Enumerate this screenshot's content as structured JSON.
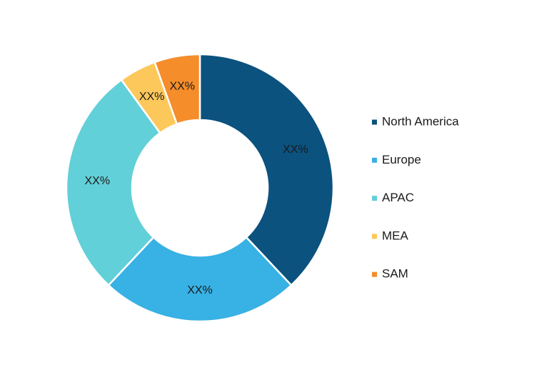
{
  "chart_data": {
    "type": "pie",
    "categories": [
      "North America",
      "Europe",
      "APAC",
      "MEA",
      "SAM"
    ],
    "values": [
      38,
      24,
      28,
      4.5,
      5.5
    ],
    "value_labels": [
      "XX%",
      "XX%",
      "XX%",
      "XX%",
      "XX%"
    ],
    "colors": [
      "#0b527e",
      "#38b1e4",
      "#62d0d8",
      "#fdc85b",
      "#f58d2b"
    ]
  }
}
